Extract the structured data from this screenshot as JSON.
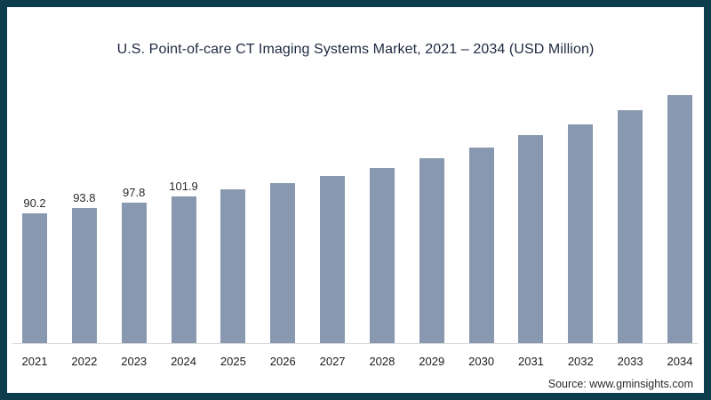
{
  "frame": {
    "border_color": "#0e3d4e",
    "background": "#ffffff"
  },
  "chart_data": {
    "type": "bar",
    "title": "U.S. Point-of-care CT Imaging Systems Market, 2021 – 2034 (USD Million)",
    "categories": [
      "2021",
      "2022",
      "2023",
      "2024",
      "2025",
      "2026",
      "2027",
      "2028",
      "2029",
      "2030",
      "2031",
      "2032",
      "2033",
      "2034"
    ],
    "values": [
      90.2,
      93.8,
      97.8,
      101.9,
      106.7,
      111.0,
      116.1,
      121.8,
      128.3,
      135.7,
      144.4,
      152.2,
      161.9,
      172.2
    ],
    "value_labels_shown": [
      "90.2",
      "93.8",
      "97.8",
      "101.9"
    ],
    "labeled_count": 4,
    "bar_color": "#8798b0",
    "axis_line_color": "#d9d9d9",
    "xlabel": "",
    "ylabel": "",
    "ylim": [
      0,
      180
    ],
    "grid": false,
    "legend": false
  },
  "source": {
    "text": "Source: www.gminsights.com"
  }
}
